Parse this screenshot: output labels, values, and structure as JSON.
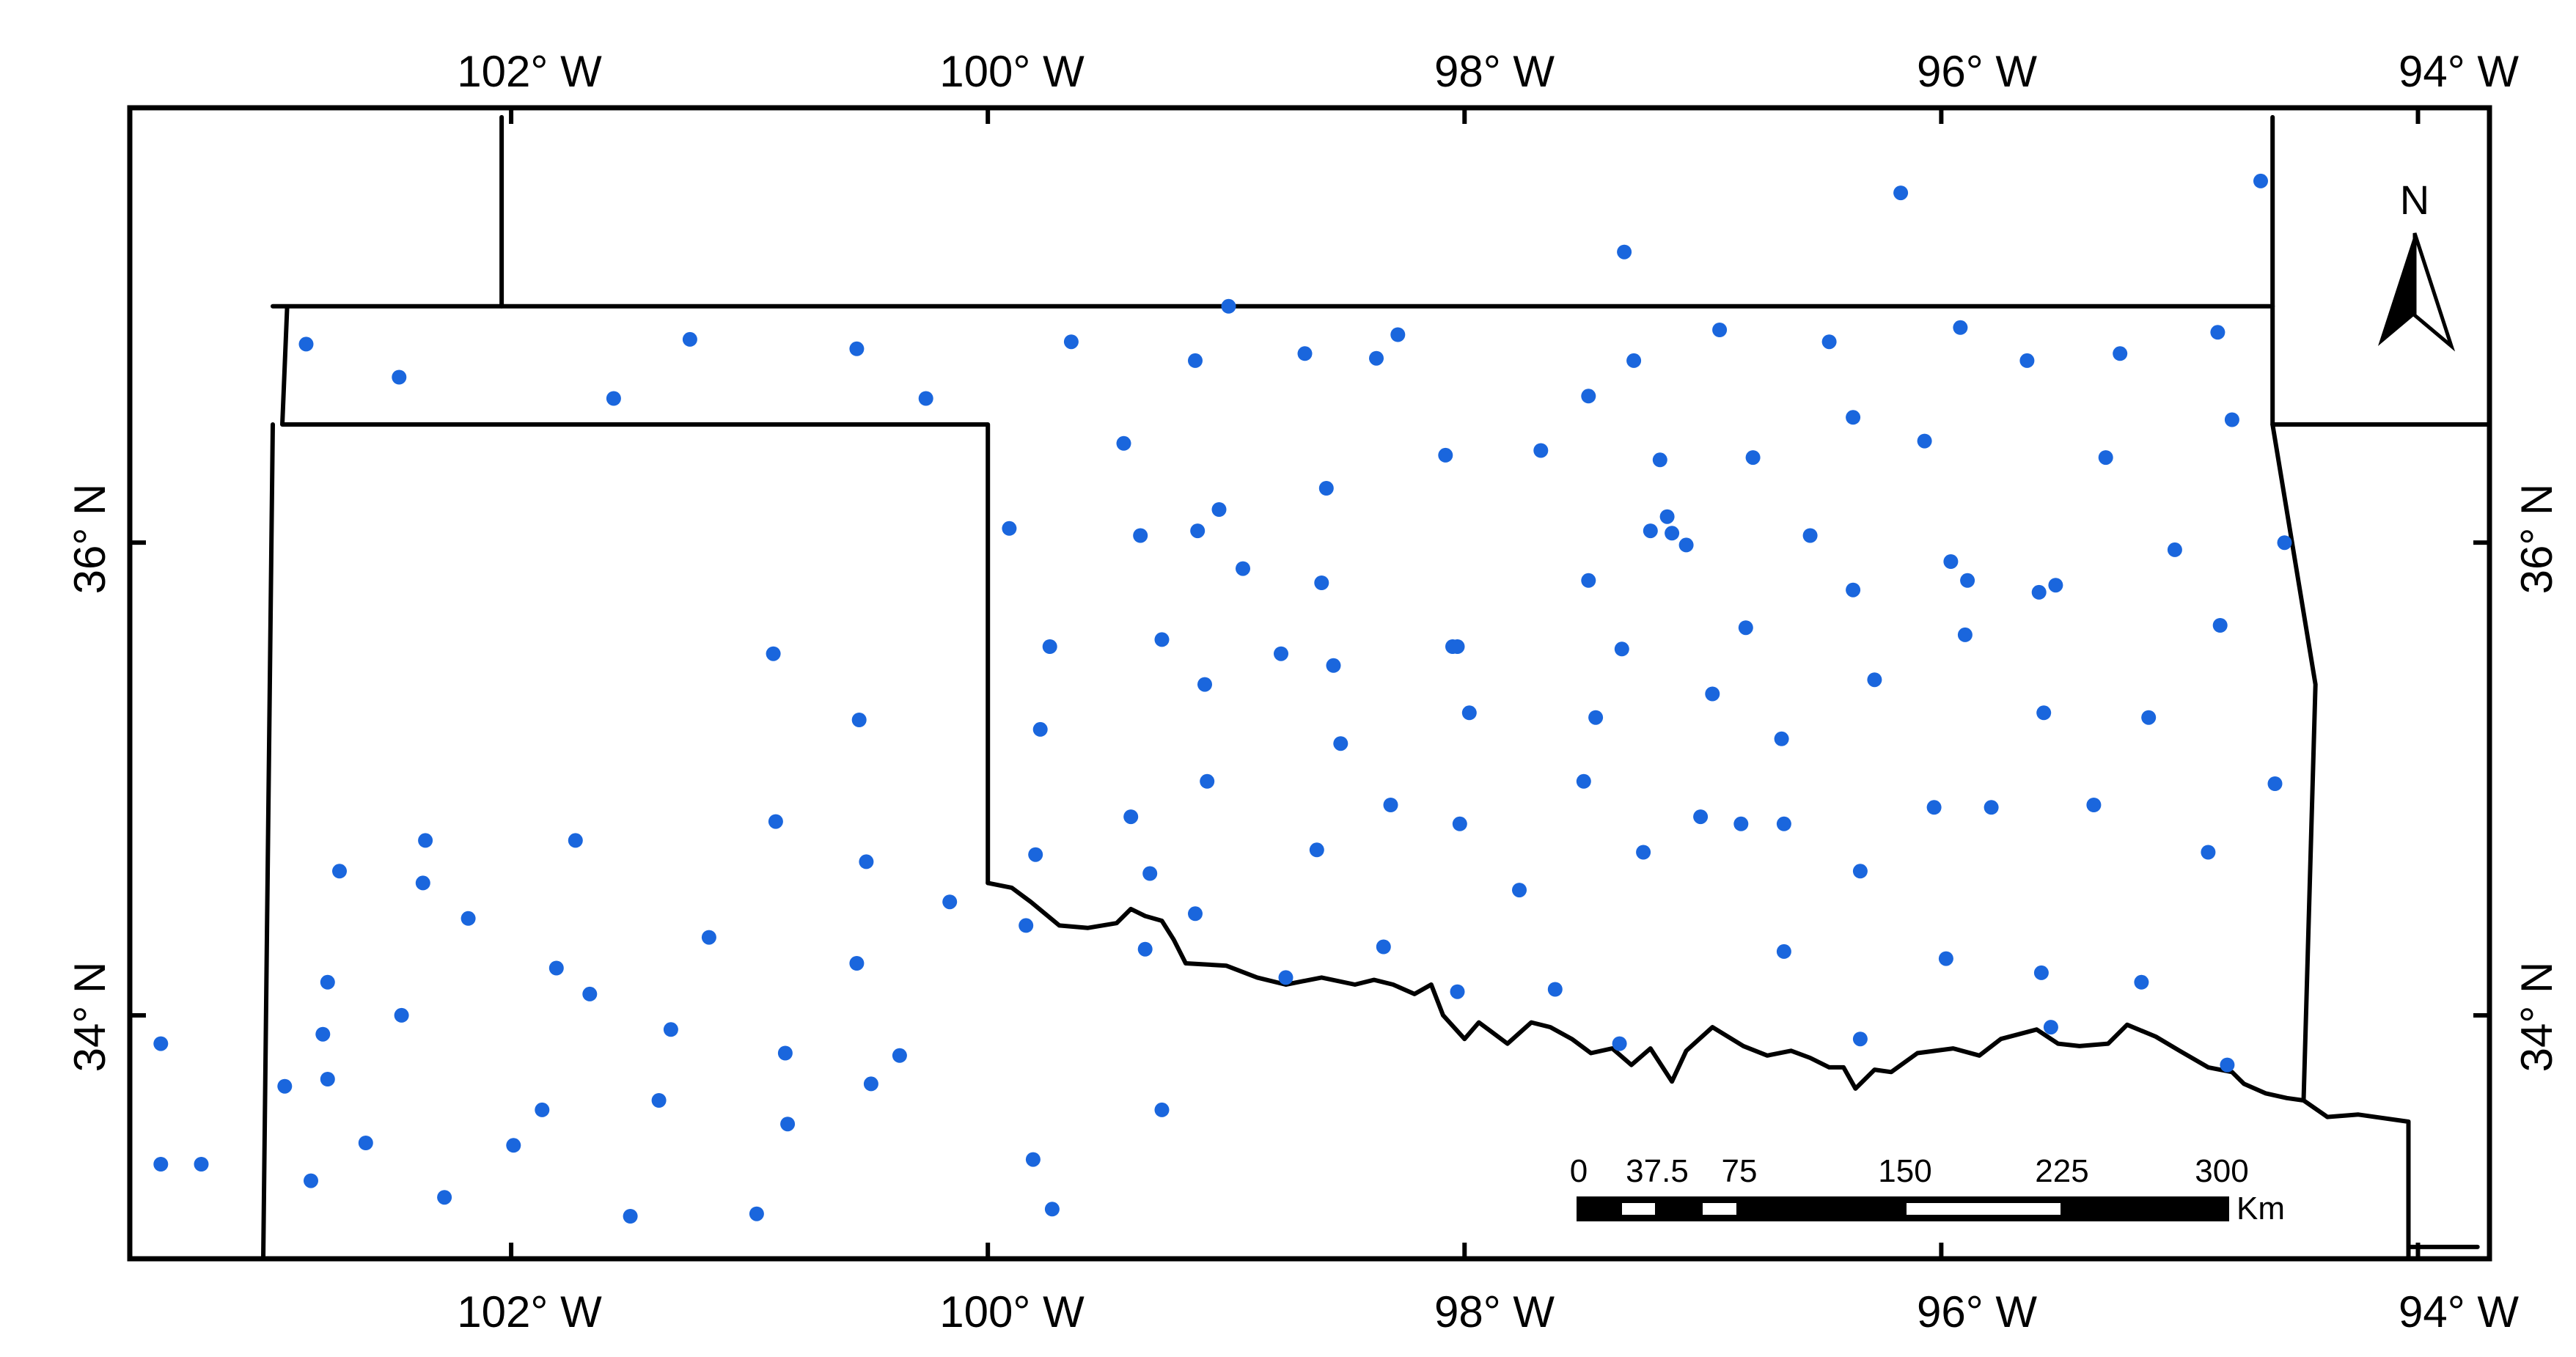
{
  "map": {
    "axes": {
      "top_x_ticks": [
        {
          "value": -102,
          "label": "102° W"
        },
        {
          "value": -100,
          "label": "100° W"
        },
        {
          "value": -98,
          "label": "98° W"
        },
        {
          "value": -96,
          "label": "96° W"
        },
        {
          "value": -94,
          "label": "94° W"
        }
      ],
      "bottom_x_ticks": [
        {
          "value": -102,
          "label": "102° W"
        },
        {
          "value": -100,
          "label": "100° W"
        },
        {
          "value": -98,
          "label": "98° W"
        },
        {
          "value": -96,
          "label": "96° W"
        },
        {
          "value": -94,
          "label": "94° W"
        }
      ],
      "left_y_ticks": [
        {
          "value": 36,
          "label": "36° N"
        },
        {
          "value": 34,
          "label": "34° N"
        }
      ],
      "right_y_ticks": [
        {
          "value": 36,
          "label": "36° N"
        },
        {
          "value": 34,
          "label": "34° N"
        }
      ],
      "lon_range": [
        -103.6,
        -93.7
      ],
      "lat_range": [
        32.97,
        37.84
      ]
    },
    "north_arrow": {
      "label": "N"
    },
    "scale_bar": {
      "labels": [
        "0",
        "37.5",
        "75",
        "150",
        "225",
        "300"
      ],
      "unit": "Km"
    },
    "colors": {
      "station": "#1a66dd",
      "boundary": "#000000",
      "background": "#ffffff"
    },
    "stations": [
      [
        -94.66,
        37.53
      ],
      [
        -96.17,
        37.48
      ],
      [
        -97.33,
        37.23
      ],
      [
        -102.86,
        36.84
      ],
      [
        -102.47,
        36.7
      ],
      [
        -101.25,
        36.86
      ],
      [
        -101.57,
        36.61
      ],
      [
        -100.55,
        36.82
      ],
      [
        -100.26,
        36.61
      ],
      [
        -99.65,
        36.85
      ],
      [
        -98.99,
        37.0
      ],
      [
        -99.13,
        36.77
      ],
      [
        -98.67,
        36.8
      ],
      [
        -98.37,
        36.78
      ],
      [
        -98.28,
        36.88
      ],
      [
        -97.29,
        36.77
      ],
      [
        -96.93,
        36.9
      ],
      [
        -96.47,
        36.85
      ],
      [
        -95.92,
        36.91
      ],
      [
        -95.64,
        36.77
      ],
      [
        -95.25,
        36.8
      ],
      [
        -94.84,
        36.89
      ],
      [
        -94.78,
        36.52
      ],
      [
        -97.48,
        36.62
      ],
      [
        -96.37,
        36.53
      ],
      [
        -96.07,
        36.43
      ],
      [
        -95.31,
        36.36
      ],
      [
        -98.08,
        36.37
      ],
      [
        -97.68,
        36.39
      ],
      [
        -97.18,
        36.35
      ],
      [
        -96.79,
        36.36
      ],
      [
        -99.43,
        36.42
      ],
      [
        -98.58,
        36.23
      ],
      [
        -99.03,
        36.14
      ],
      [
        -99.12,
        36.05
      ],
      [
        -99.36,
        36.03
      ],
      [
        -99.91,
        36.06
      ],
      [
        -97.22,
        36.05
      ],
      [
        -97.15,
        36.11
      ],
      [
        -97.13,
        36.04
      ],
      [
        -97.07,
        35.99
      ],
      [
        -96.55,
        36.03
      ],
      [
        -95.96,
        35.92
      ],
      [
        -95.02,
        35.97
      ],
      [
        -94.56,
        36.0
      ],
      [
        -98.93,
        35.89
      ],
      [
        -98.6,
        35.83
      ],
      [
        -97.48,
        35.84
      ],
      [
        -96.37,
        35.8
      ],
      [
        -95.89,
        35.84
      ],
      [
        -95.59,
        35.79
      ],
      [
        -95.52,
        35.82
      ],
      [
        -94.83,
        35.65
      ],
      [
        -96.82,
        35.64
      ],
      [
        -97.34,
        35.55
      ],
      [
        -98.03,
        35.56
      ],
      [
        -98.05,
        35.56
      ],
      [
        -98.77,
        35.53
      ],
      [
        -98.55,
        35.48
      ],
      [
        -99.27,
        35.59
      ],
      [
        -99.74,
        35.56
      ],
      [
        -99.09,
        35.4
      ],
      [
        -96.28,
        35.42
      ],
      [
        -95.9,
        35.61
      ],
      [
        -96.96,
        35.36
      ],
      [
        -97.45,
        35.26
      ],
      [
        -97.98,
        35.28
      ],
      [
        -95.57,
        35.28
      ],
      [
        -95.13,
        35.26
      ],
      [
        -96.67,
        35.17
      ],
      [
        -98.52,
        35.15
      ],
      [
        -99.78,
        35.21
      ],
      [
        -99.08,
        34.99
      ],
      [
        -97.5,
        34.99
      ],
      [
        -94.6,
        34.98
      ],
      [
        -98.31,
        34.89
      ],
      [
        -98.02,
        34.81
      ],
      [
        -99.4,
        34.84
      ],
      [
        -97.01,
        34.84
      ],
      [
        -96.84,
        34.81
      ],
      [
        -96.66,
        34.81
      ],
      [
        -96.03,
        34.88
      ],
      [
        -95.79,
        34.88
      ],
      [
        -95.36,
        34.89
      ],
      [
        -94.88,
        34.69
      ],
      [
        -97.25,
        34.69
      ],
      [
        -98.62,
        34.7
      ],
      [
        -96.34,
        34.61
      ],
      [
        -99.32,
        34.6
      ],
      [
        -99.8,
        34.68
      ],
      [
        -97.77,
        34.53
      ],
      [
        -99.13,
        34.43
      ],
      [
        -98.34,
        34.29
      ],
      [
        -99.34,
        34.28
      ],
      [
        -96.66,
        34.27
      ],
      [
        -95.98,
        34.24
      ],
      [
        -95.58,
        34.18
      ],
      [
        -95.16,
        34.14
      ],
      [
        -97.62,
        34.11
      ],
      [
        -98.03,
        34.1
      ],
      [
        -98.75,
        34.16
      ],
      [
        -95.54,
        33.95
      ],
      [
        -97.35,
        33.88
      ],
      [
        -96.34,
        33.9
      ],
      [
        -94.8,
        33.79
      ],
      [
        -101.73,
        34.74
      ],
      [
        -102.72,
        34.61
      ],
      [
        -102.37,
        34.56
      ],
      [
        -102.18,
        34.41
      ],
      [
        -102.77,
        34.14
      ],
      [
        -102.79,
        33.92
      ],
      [
        -102.77,
        33.73
      ],
      [
        -102.46,
        34.0
      ],
      [
        -101.67,
        34.09
      ],
      [
        -101.33,
        33.94
      ],
      [
        -101.81,
        34.2
      ],
      [
        -101.17,
        34.33
      ],
      [
        -102.36,
        34.74
      ],
      [
        -102.95,
        33.7
      ],
      [
        -103.47,
        33.88
      ],
      [
        -103.47,
        33.37
      ],
      [
        -103.3,
        33.37
      ],
      [
        -102.61,
        33.46
      ],
      [
        -102.84,
        33.3
      ],
      [
        -102.28,
        33.23
      ],
      [
        -101.99,
        33.45
      ],
      [
        -101.87,
        33.6
      ],
      [
        -101.5,
        33.15
      ],
      [
        -101.38,
        33.64
      ],
      [
        -100.97,
        33.16
      ],
      [
        -100.84,
        33.54
      ],
      [
        -100.85,
        33.84
      ],
      [
        -100.89,
        34.82
      ],
      [
        -100.9,
        35.53
      ],
      [
        -100.54,
        35.25
      ],
      [
        -100.51,
        34.65
      ],
      [
        -100.55,
        34.22
      ],
      [
        -100.16,
        34.48
      ],
      [
        -100.37,
        33.83
      ],
      [
        -100.49,
        33.71
      ],
      [
        -99.84,
        34.38
      ],
      [
        -99.81,
        33.39
      ],
      [
        -99.73,
        33.18
      ],
      [
        -99.27,
        33.6
      ]
    ],
    "boundaries": [
      [
        [
          -103.0,
          37.0
        ],
        [
          -94.61,
          37.0
        ]
      ],
      [
        [
          -102.04,
          37.8
        ],
        [
          -102.04,
          37.0
        ]
      ],
      [
        [
          -102.94,
          36.99
        ],
        [
          -102.96,
          36.5
        ],
        [
          -100.0,
          36.5
        ],
        [
          -100.0,
          34.56
        ]
      ],
      [
        [
          -94.61,
          37.8
        ],
        [
          -94.61,
          36.5
        ],
        [
          -94.43,
          35.4
        ],
        [
          -94.48,
          33.64
        ]
      ],
      [
        [
          -94.61,
          36.5
        ],
        [
          -93.7,
          36.5
        ]
      ],
      [
        [
          -103.0,
          36.5
        ],
        [
          -103.04,
          32.97
        ]
      ],
      [
        [
          -100.0,
          34.56
        ],
        [
          -99.9,
          34.54
        ],
        [
          -99.82,
          34.48
        ],
        [
          -99.7,
          34.38
        ],
        [
          -99.58,
          34.37
        ],
        [
          -99.46,
          34.39
        ],
        [
          -99.4,
          34.45
        ],
        [
          -99.34,
          34.42
        ],
        [
          -99.27,
          34.4
        ],
        [
          -99.22,
          34.32
        ],
        [
          -99.17,
          34.22
        ],
        [
          -99.0,
          34.21
        ],
        [
          -98.87,
          34.16
        ],
        [
          -98.75,
          34.13
        ],
        [
          -98.6,
          34.16
        ],
        [
          -98.46,
          34.13
        ],
        [
          -98.38,
          34.15
        ],
        [
          -98.3,
          34.13
        ],
        [
          -98.21,
          34.09
        ],
        [
          -98.14,
          34.13
        ],
        [
          -98.09,
          34.0
        ],
        [
          -98.0,
          33.9
        ],
        [
          -97.94,
          33.97
        ],
        [
          -97.82,
          33.88
        ],
        [
          -97.72,
          33.97
        ],
        [
          -97.64,
          33.95
        ],
        [
          -97.55,
          33.9
        ],
        [
          -97.47,
          33.84
        ],
        [
          -97.38,
          33.86
        ],
        [
          -97.3,
          33.79
        ],
        [
          -97.22,
          33.86
        ],
        [
          -97.13,
          33.72
        ],
        [
          -97.07,
          33.85
        ],
        [
          -96.96,
          33.95
        ],
        [
          -96.83,
          33.87
        ],
        [
          -96.73,
          33.83
        ],
        [
          -96.63,
          33.85
        ],
        [
          -96.55,
          33.82
        ],
        [
          -96.47,
          33.78
        ],
        [
          -96.41,
          33.78
        ],
        [
          -96.36,
          33.69
        ],
        [
          -96.28,
          33.77
        ],
        [
          -96.21,
          33.76
        ],
        [
          -96.1,
          33.84
        ],
        [
          -95.95,
          33.86
        ],
        [
          -95.84,
          33.83
        ],
        [
          -95.75,
          33.9
        ],
        [
          -95.6,
          33.94
        ],
        [
          -95.51,
          33.88
        ],
        [
          -95.42,
          33.87
        ],
        [
          -95.3,
          33.88
        ],
        [
          -95.22,
          33.96
        ],
        [
          -95.1,
          33.91
        ],
        [
          -95.0,
          33.85
        ],
        [
          -94.88,
          33.78
        ],
        [
          -94.78,
          33.76
        ],
        [
          -94.73,
          33.71
        ],
        [
          -94.64,
          33.67
        ],
        [
          -94.55,
          33.65
        ],
        [
          -94.48,
          33.64
        ],
        [
          -94.38,
          33.57
        ],
        [
          -94.25,
          33.58
        ],
        [
          -94.04,
          33.55
        ],
        [
          -94.04,
          32.97
        ]
      ],
      [
        [
          -94.04,
          33.02
        ],
        [
          -93.75,
          33.02
        ]
      ]
    ]
  }
}
